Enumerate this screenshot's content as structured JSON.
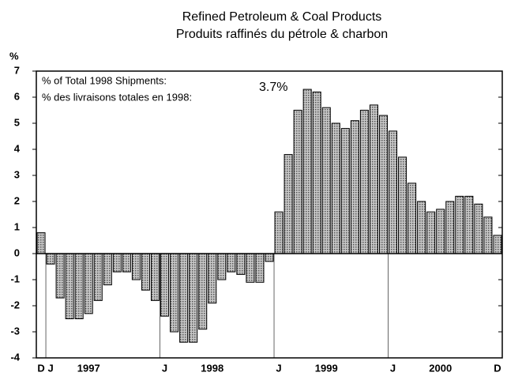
{
  "chart_data": {
    "type": "bar",
    "title": [
      "Refined Petroleum & Coal Products",
      "Produits raffinés du pétrole & charbon"
    ],
    "y_label": "%",
    "annotations": [
      "% of Total 1998 Shipments:",
      "% des livraisons totales en 1998:",
      "3.7%"
    ],
    "categories": [
      "D",
      "J",
      null,
      null,
      null,
      "1997",
      null,
      null,
      null,
      null,
      null,
      null,
      null,
      "J",
      null,
      null,
      null,
      null,
      "1998",
      null,
      null,
      null,
      null,
      null,
      null,
      "J",
      null,
      null,
      null,
      null,
      "1999",
      null,
      null,
      null,
      null,
      null,
      null,
      "J",
      null,
      null,
      null,
      null,
      "2000",
      null,
      null,
      null,
      null,
      null,
      "D"
    ],
    "values": [
      0.8,
      -0.4,
      -1.7,
      -2.5,
      -2.5,
      -2.3,
      -1.8,
      -1.2,
      -0.7,
      -0.7,
      -1.0,
      -1.4,
      -1.8,
      -2.4,
      -3.0,
      -3.4,
      -3.4,
      -2.9,
      -1.9,
      -1.0,
      -0.7,
      -0.8,
      -1.1,
      -1.1,
      -0.3,
      1.6,
      3.8,
      5.5,
      6.3,
      6.2,
      5.6,
      5.0,
      4.8,
      5.1,
      5.5,
      5.7,
      5.3,
      4.7,
      3.7,
      2.7,
      2.0,
      1.6,
      1.7,
      2.0,
      2.2,
      2.2,
      1.9,
      1.4,
      0.7
    ],
    "color": "#a0a0a0",
    "ylim": [
      -4,
      7
    ],
    "yticks": [
      -4,
      -3,
      -2,
      -1,
      0,
      1,
      2,
      3,
      4,
      5,
      6,
      7
    ]
  }
}
